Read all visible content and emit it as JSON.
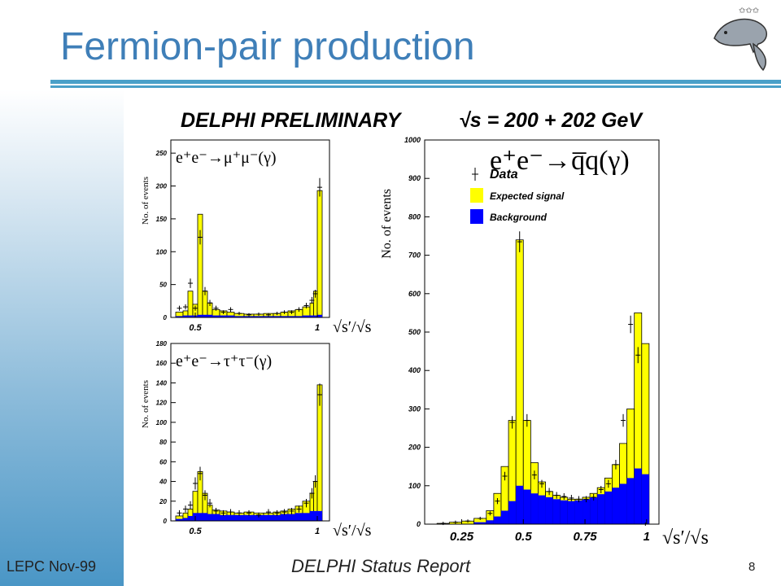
{
  "slide": {
    "title": "Fermion-pair production",
    "footer_left": "LEPC Nov-99",
    "footer_center": "DELPHI Status Report",
    "page_number": "8",
    "logo_icon": "dolphin-logo-icon"
  },
  "colors": {
    "title": "#3f7fb8",
    "signal": "#ffff00",
    "background": "#0000ff",
    "rule": "#4aa0c8"
  },
  "header": {
    "left": "DELPHI PRELIMINARY",
    "right": "√s = 200 + 202 GeV"
  },
  "chart_data": [
    {
      "type": "bar",
      "name": "mumu",
      "process_label": "e⁺e⁻→μ⁺μ⁻(γ)",
      "ylabel": "No. of events",
      "xlabel": "√s′/√s",
      "xlim": [
        0.4,
        1.05
      ],
      "ylim": [
        0,
        270
      ],
      "ytick_labels": [
        "0",
        "50",
        "100",
        "150",
        "200",
        "250"
      ],
      "yticks": [
        0,
        50,
        100,
        150,
        200,
        250
      ],
      "xtick_labels": [
        "0.5",
        "1"
      ],
      "xticks": [
        0.5,
        1.0
      ],
      "bin_edges": [
        0.42,
        0.45,
        0.47,
        0.49,
        0.51,
        0.53,
        0.55,
        0.57,
        0.6,
        0.63,
        0.66,
        0.7,
        0.74,
        0.78,
        0.82,
        0.85,
        0.88,
        0.91,
        0.94,
        0.97,
        0.985,
        1.0,
        1.02
      ],
      "total": [
        8,
        10,
        40,
        20,
        157,
        40,
        22,
        12,
        10,
        8,
        6,
        5,
        5,
        6,
        6,
        8,
        10,
        12,
        16,
        22,
        40,
        193
      ],
      "background": [
        2,
        3,
        3,
        3,
        4,
        4,
        4,
        3,
        3,
        3,
        2,
        2,
        2,
        2,
        2,
        2,
        2,
        2,
        3,
        3,
        3,
        4
      ],
      "data_x": [
        0.435,
        0.46,
        0.48,
        0.5,
        0.52,
        0.54,
        0.56,
        0.585,
        0.615,
        0.645,
        0.68,
        0.72,
        0.76,
        0.8,
        0.835,
        0.865,
        0.895,
        0.925,
        0.955,
        0.978,
        0.992,
        1.01
      ],
      "data_y": [
        14,
        16,
        52,
        14,
        122,
        40,
        22,
        14,
        8,
        12,
        6,
        4,
        5,
        4,
        6,
        8,
        8,
        12,
        18,
        26,
        36,
        198
      ]
    },
    {
      "type": "bar",
      "name": "tautau",
      "process_label": "e⁺e⁻→τ⁺τ⁻(γ)",
      "ylabel": "No. of events",
      "xlabel": "√s′/√s",
      "xlim": [
        0.4,
        1.05
      ],
      "ylim": [
        0,
        180
      ],
      "ytick_labels": [
        "0",
        "20",
        "40",
        "60",
        "80",
        "100",
        "120",
        "140",
        "160",
        "180"
      ],
      "yticks": [
        0,
        20,
        40,
        60,
        80,
        100,
        120,
        140,
        160,
        180
      ],
      "xtick_labels": [
        "0.5",
        "1"
      ],
      "xticks": [
        0.5,
        1.0
      ],
      "bin_edges": [
        0.42,
        0.45,
        0.47,
        0.49,
        0.51,
        0.53,
        0.55,
        0.57,
        0.6,
        0.63,
        0.66,
        0.7,
        0.74,
        0.78,
        0.82,
        0.85,
        0.88,
        0.91,
        0.94,
        0.97,
        0.985,
        1.0,
        1.02
      ],
      "total": [
        5,
        8,
        12,
        30,
        50,
        28,
        16,
        11,
        10,
        9,
        8,
        9,
        8,
        8,
        9,
        10,
        12,
        15,
        20,
        28,
        40,
        138
      ],
      "background": [
        2,
        3,
        5,
        8,
        8,
        8,
        7,
        7,
        6,
        6,
        6,
        6,
        6,
        6,
        6,
        7,
        7,
        8,
        8,
        10,
        10,
        10
      ],
      "data_x": [
        0.435,
        0.46,
        0.48,
        0.5,
        0.52,
        0.54,
        0.56,
        0.585,
        0.615,
        0.645,
        0.68,
        0.72,
        0.76,
        0.8,
        0.835,
        0.865,
        0.895,
        0.925,
        0.955,
        0.978,
        0.992,
        1.01
      ],
      "data_y": [
        8,
        12,
        16,
        38,
        48,
        26,
        18,
        10,
        8,
        9,
        8,
        8,
        6,
        9,
        8,
        9,
        10,
        12,
        18,
        28,
        40,
        128
      ]
    },
    {
      "type": "bar",
      "name": "qq",
      "process_label": "e⁺e⁻→q̅q(γ)",
      "ylabel": "No. of events",
      "xlabel": "√s′/√s",
      "legend": [
        {
          "label": "Data",
          "style": "marker"
        },
        {
          "label": "Expected signal",
          "color": "#ffff00"
        },
        {
          "label": "Background",
          "color": "#0000ff"
        }
      ],
      "legend_position": "top-left",
      "xlim": [
        0.1,
        1.05
      ],
      "ylim": [
        0,
        1000
      ],
      "ytick_labels": [
        "0",
        "100",
        "200",
        "300",
        "400",
        "500",
        "600",
        "700",
        "800",
        "900",
        "1000"
      ],
      "yticks": [
        0,
        100,
        200,
        300,
        400,
        500,
        600,
        700,
        800,
        900,
        1000
      ],
      "xtick_labels": [
        "0.25",
        "0.5",
        "0.75",
        "1"
      ],
      "xticks": [
        0.25,
        0.5,
        0.75,
        1.0
      ],
      "bin_edges": [
        0.1,
        0.15,
        0.2,
        0.25,
        0.3,
        0.35,
        0.38,
        0.41,
        0.44,
        0.47,
        0.5,
        0.53,
        0.56,
        0.59,
        0.62,
        0.65,
        0.68,
        0.71,
        0.74,
        0.77,
        0.8,
        0.83,
        0.86,
        0.89,
        0.92,
        0.95,
        0.98,
        1.01,
        1.04
      ],
      "total": [
        0,
        2,
        5,
        8,
        15,
        35,
        80,
        150,
        270,
        740,
        270,
        160,
        110,
        85,
        75,
        70,
        65,
        65,
        70,
        80,
        95,
        120,
        155,
        210,
        300,
        550,
        470,
        0
      ],
      "background": [
        0,
        0,
        0,
        0,
        5,
        10,
        20,
        35,
        60,
        100,
        90,
        80,
        75,
        70,
        65,
        62,
        60,
        62,
        65,
        70,
        78,
        85,
        95,
        105,
        120,
        145,
        130,
        0
      ],
      "data_x": [
        0.175,
        0.225,
        0.275,
        0.325,
        0.365,
        0.395,
        0.425,
        0.455,
        0.485,
        0.515,
        0.545,
        0.575,
        0.605,
        0.635,
        0.665,
        0.695,
        0.725,
        0.755,
        0.785,
        0.815,
        0.845,
        0.875,
        0.905,
        0.935,
        0.965,
        0.995
      ],
      "data_y": [
        2,
        5,
        8,
        15,
        28,
        60,
        125,
        265,
        735,
        270,
        128,
        105,
        85,
        75,
        72,
        68,
        65,
        65,
        70,
        90,
        105,
        155,
        270,
        520,
        440,
        0
      ]
    }
  ]
}
